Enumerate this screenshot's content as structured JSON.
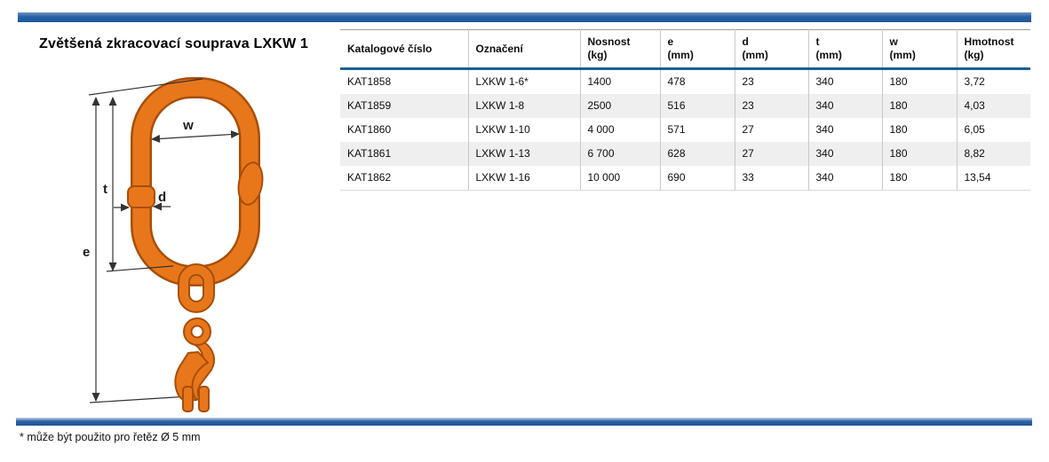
{
  "page": {
    "title": "Zvětšená zkracovací souprava LXKW 1",
    "footnote": "* může být použito pro řetěz Ø 5 mm"
  },
  "colors": {
    "accent_blue": "#2560A7",
    "header_rule_blue": "#1D5F94",
    "orange": "#E8771B",
    "orange_dark": "#A84E07",
    "row_alt": "#EFEFF0"
  },
  "diagram": {
    "labels": {
      "e": "e",
      "t": "t",
      "w": "w",
      "d": "d"
    }
  },
  "table": {
    "columns": [
      {
        "label": "Katalogové číslo",
        "unit": ""
      },
      {
        "label": "Označení",
        "unit": ""
      },
      {
        "label": "Nosnost",
        "unit": "(kg)"
      },
      {
        "label": "e",
        "unit": "(mm)"
      },
      {
        "label": "d",
        "unit": "(mm)"
      },
      {
        "label": "t",
        "unit": "(mm)"
      },
      {
        "label": "w",
        "unit": "(mm)"
      },
      {
        "label": "Hmotnost",
        "unit": "(kg)"
      }
    ],
    "rows": [
      [
        "KAT1858",
        "LXKW 1-6*",
        "1400",
        "478",
        "23",
        "340",
        "180",
        "3,72"
      ],
      [
        "KAT1859",
        "LXKW 1-8",
        "2500",
        "516",
        "23",
        "340",
        "180",
        "4,03"
      ],
      [
        "KAT1860",
        "LXKW 1-10",
        "4 000",
        "571",
        "27",
        "340",
        "180",
        "6,05"
      ],
      [
        "KAT1861",
        "LXKW 1-13",
        "6 700",
        "628",
        "27",
        "340",
        "180",
        "8,82"
      ],
      [
        "KAT1862",
        "LXKW 1-16",
        "10 000",
        "690",
        "33",
        "340",
        "180",
        "13,54"
      ]
    ]
  }
}
